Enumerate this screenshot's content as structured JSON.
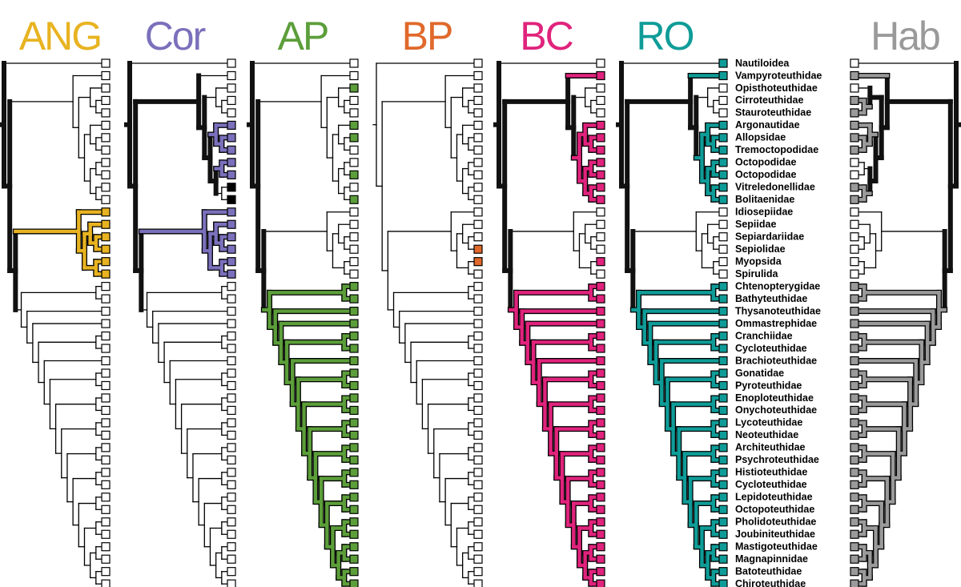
{
  "panels": [
    {
      "title": "ANG",
      "color": "#e8b321"
    },
    {
      "title": "Cor",
      "color": "#7a70bb"
    },
    {
      "title": "AP",
      "color": "#5c9e3a"
    },
    {
      "title": "BP",
      "color": "#e0692b"
    },
    {
      "title": "BC",
      "color": "#e0237c"
    },
    {
      "title": "RO",
      "color": "#0f9c98"
    },
    {
      "title": "Hab",
      "color": "#9a9a9a"
    }
  ],
  "taxa": [
    "Nautiloidea",
    "Vampyroteuthidae",
    "Opisthoteuthidae",
    "Cirroteuthidae",
    "Stauroteuthidae",
    "Argonautidae",
    "Allopsidae",
    "Tremoctopodidae",
    "Octopodidae",
    "Octopodidae",
    "Vitreledonellidae",
    "Bolitaenidae",
    "Idiosepiidae",
    "Sepiidae",
    "Sepiardariidae",
    "Sepiolidae",
    "Myopsida",
    "Spirulida",
    "Chtenopterygidae",
    "Bathyteuthidae",
    "Thysanoteuthidae",
    "Ommastrephidae",
    "Cranchiidae",
    "Cycloteuthidae",
    "Brachioteuthidae",
    "Gonatidae",
    "Pyroteuthidae",
    "Enoploteuthidae",
    "Onychoteuthidae",
    "Lycoteuthidae",
    "Neoteuthidae",
    "Architeuthidae",
    "Psychroteuthidae",
    "Histioteuthidae",
    "Cycloteuthidae",
    "Lepidoteuthidae",
    "Octopoteuthidae",
    "Pholidoteuthidae",
    "Joubiniteuthidae",
    "Mastigoteuthidae",
    "Magnapinnidae",
    "Batoteuthidae",
    "Chiroteuthidae"
  ]
}
